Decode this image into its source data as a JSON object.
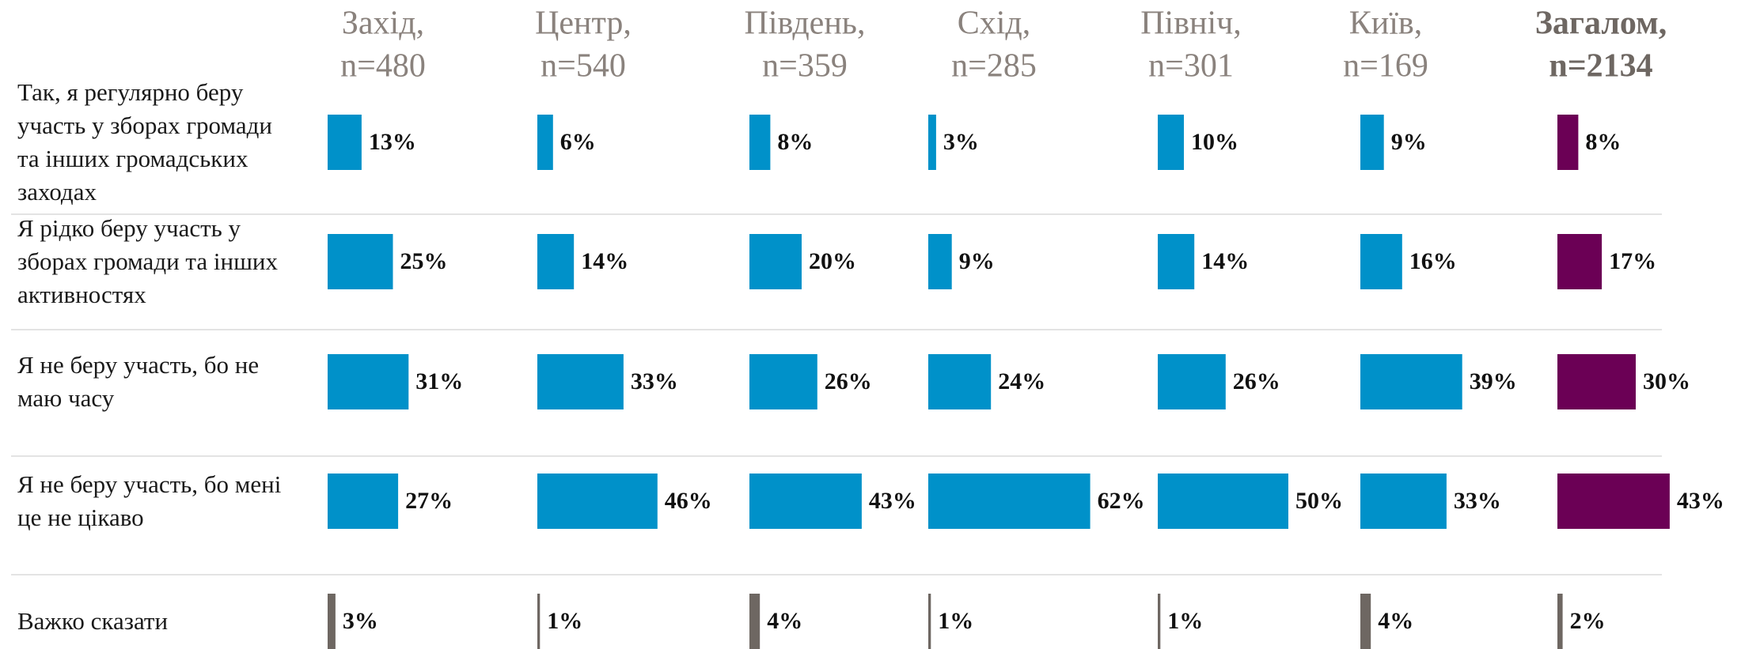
{
  "chart_data": {
    "type": "bar",
    "categories": [
      "Так, я регулярно беру участь у зборах громади та інших громадських заходах",
      "Я рідко беру участь у зборах громади та інших активностях",
      "Я не беру участь, бо не маю часу",
      "Я не беру участь, бо мені це не цікаво",
      "Важко сказати"
    ],
    "last_category_color": "#6e6762",
    "series": [
      {
        "name": "Захід,",
        "sample": "n=480",
        "color": "#0091c9",
        "values": [
          13,
          25,
          31,
          27,
          3
        ],
        "value_labels": [
          "13%",
          "25%",
          "31%",
          "27%",
          "3%"
        ]
      },
      {
        "name": "Центр,",
        "sample": "n=540",
        "color": "#0091c9",
        "values": [
          6,
          14,
          33,
          46,
          1
        ],
        "value_labels": [
          "6%",
          "14%",
          "33%",
          "46%",
          "1%"
        ]
      },
      {
        "name": "Південь,",
        "sample": "n=359",
        "color": "#0091c9",
        "values": [
          8,
          20,
          26,
          43,
          4
        ],
        "value_labels": [
          "8%",
          "20%",
          "26%",
          "43%",
          "4%"
        ]
      },
      {
        "name": "Схід,",
        "sample": "n=285",
        "color": "#0091c9",
        "values": [
          3,
          9,
          24,
          62,
          1
        ],
        "value_labels": [
          "3%",
          "9%",
          "24%",
          "62%",
          "1%"
        ]
      },
      {
        "name": "Північ,",
        "sample": "n=301",
        "color": "#0091c9",
        "values": [
          10,
          14,
          26,
          50,
          1
        ],
        "value_labels": [
          "10%",
          "14%",
          "26%",
          "50%",
          "1%"
        ]
      },
      {
        "name": "Київ,",
        "sample": "n=169",
        "color": "#0091c9",
        "values": [
          9,
          16,
          39,
          33,
          4
        ],
        "value_labels": [
          "9%",
          "16%",
          "39%",
          "33%",
          "4%"
        ]
      },
      {
        "name": "Загалом,",
        "sample": "n=2134",
        "color": "#6b0055",
        "bold": true,
        "values": [
          8,
          17,
          30,
          43,
          2
        ],
        "value_labels": [
          "8%",
          "17%",
          "30%",
          "43%",
          "2%"
        ]
      }
    ]
  }
}
